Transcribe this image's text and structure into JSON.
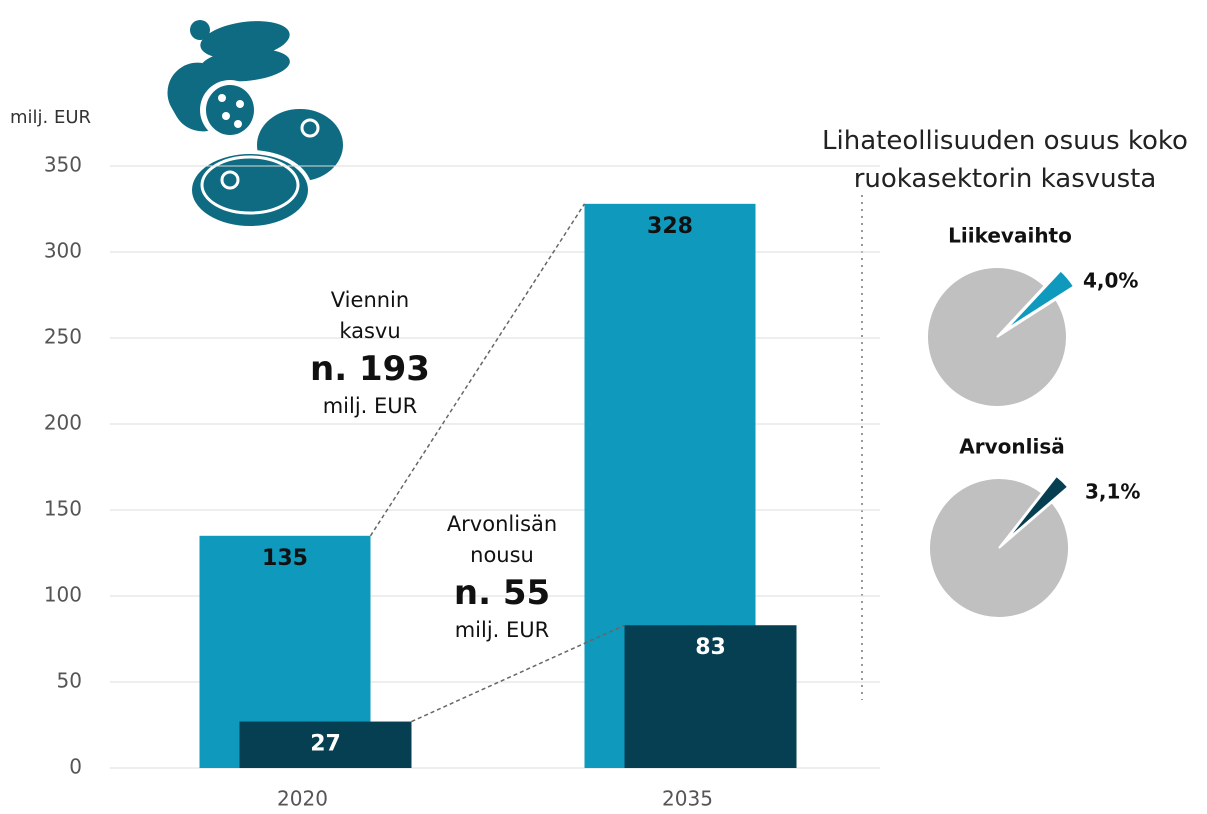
{
  "chart_data": [
    {
      "type": "bar",
      "y_label": "milj. EUR",
      "categories": [
        "2020",
        "2035"
      ],
      "series": [
        {
          "color": "#0f9abd",
          "values": [
            135,
            328
          ]
        },
        {
          "color": "#063f52",
          "values": [
            27,
            83
          ]
        }
      ],
      "ylim": [
        0,
        350
      ],
      "yticks": [
        0,
        50,
        100,
        150,
        200,
        250,
        300,
        350
      ],
      "grid": true,
      "annotations": [
        {
          "label": "Viennin kasvu",
          "value": "n. 193",
          "unit": "milj. EUR"
        },
        {
          "label": "Arvonlisän nousu",
          "value": "n. 55",
          "unit": "milj. EUR"
        }
      ]
    },
    {
      "type": "pie",
      "title": "Lihateollisuuden osuus koko ruokasektorin kasvusta",
      "series": [
        {
          "name": "Liikevaihto",
          "color": "#0f9abd",
          "values": [
            4.0
          ],
          "value_labels": [
            "4,0%"
          ]
        },
        {
          "name": "Arvonlisä",
          "color": "#063f52",
          "values": [
            3.1
          ],
          "value_labels": [
            "3,1%"
          ]
        }
      ]
    }
  ]
}
